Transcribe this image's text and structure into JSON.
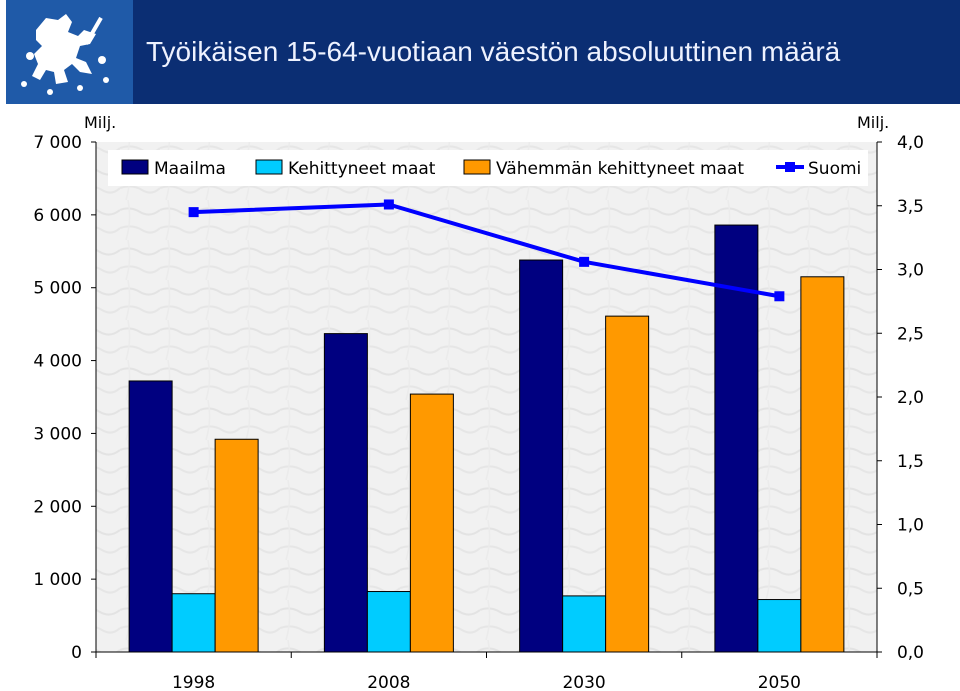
{
  "header": {
    "title": "Työikäisen 15-64-vuotiaan väestön absoluuttinen määrä",
    "logo_icon": "finnish-lion-icon",
    "logo_color": "#1f5aa8",
    "bar_color": "#0b2e73"
  },
  "chart_data": {
    "type": "bar",
    "title": "Työikäisen 15-64-vuotiaan väestön absoluuttinen määrä",
    "categories": [
      "1998",
      "2008",
      "2030",
      "2050"
    ],
    "series": [
      {
        "name": "Maailma",
        "type": "bar",
        "axis": "left",
        "color": "#000080",
        "values": [
          3720,
          4370,
          5380,
          5860
        ]
      },
      {
        "name": "Kehittyneet maat",
        "type": "bar",
        "axis": "left",
        "color": "#00ccff",
        "values": [
          800,
          830,
          770,
          720
        ]
      },
      {
        "name": "Vähemmän kehittyneet maat",
        "type": "bar",
        "axis": "left",
        "color": "#ff9900",
        "values": [
          2920,
          3540,
          4610,
          5150
        ]
      },
      {
        "name": "Suomi",
        "type": "line",
        "axis": "right",
        "color": "#0000ff",
        "values": [
          3.45,
          3.51,
          3.06,
          2.79
        ]
      }
    ],
    "y_left": {
      "unit": "Milj.",
      "lim": [
        0,
        7000
      ],
      "ticks": [
        "0",
        "1 000",
        "2 000",
        "3 000",
        "4 000",
        "5 000",
        "6 000",
        "7 000"
      ]
    },
    "y_right": {
      "unit": "Milj.",
      "lim": [
        0,
        4.0
      ],
      "ticks": [
        "0,0",
        "0,5",
        "1,0",
        "1,5",
        "2,0",
        "2,5",
        "3,0",
        "3,5",
        "4,0"
      ]
    },
    "legend": "top",
    "grid": false
  }
}
